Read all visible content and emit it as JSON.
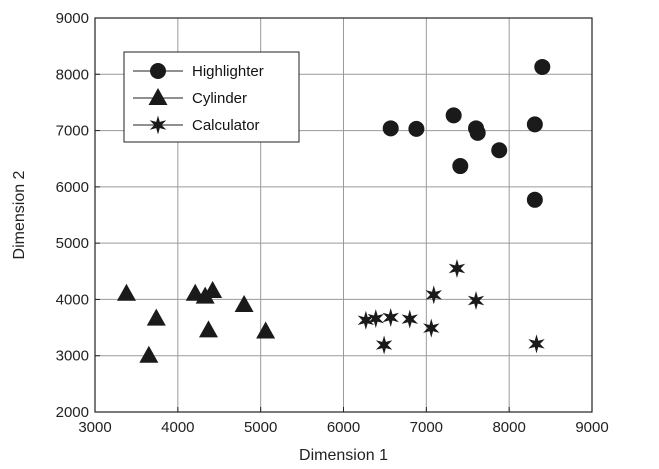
{
  "chart_data": {
    "type": "scatter",
    "title": "",
    "xlabel": "Dimension 1",
    "ylabel": "Dimension 2",
    "xlim": [
      3000,
      9000
    ],
    "ylim": [
      2000,
      9000
    ],
    "xticks": [
      3000,
      4000,
      5000,
      6000,
      7000,
      8000,
      9000
    ],
    "yticks": [
      2000,
      3000,
      4000,
      5000,
      6000,
      7000,
      8000,
      9000
    ],
    "grid": true,
    "legend_position": "top-left",
    "series": [
      {
        "name": "Highlighter",
        "marker": "circle",
        "points": [
          [
            6570,
            7040
          ],
          [
            6880,
            7030
          ],
          [
            7330,
            7270
          ],
          [
            7600,
            7040
          ],
          [
            7620,
            6960
          ],
          [
            7880,
            6650
          ],
          [
            8310,
            7110
          ],
          [
            8400,
            8130
          ],
          [
            7410,
            6370
          ],
          [
            8310,
            5770
          ]
        ]
      },
      {
        "name": "Cylinder",
        "marker": "triangle",
        "points": [
          [
            3380,
            4100
          ],
          [
            3740,
            3660
          ],
          [
            3650,
            3000
          ],
          [
            4210,
            4100
          ],
          [
            4330,
            4050
          ],
          [
            4420,
            4150
          ],
          [
            4370,
            3450
          ],
          [
            4800,
            3900
          ],
          [
            5060,
            3430
          ]
        ]
      },
      {
        "name": "Calculator",
        "marker": "star",
        "points": [
          [
            6270,
            3630
          ],
          [
            6390,
            3660
          ],
          [
            6570,
            3680
          ],
          [
            6800,
            3650
          ],
          [
            7090,
            4080
          ],
          [
            7060,
            3490
          ],
          [
            7370,
            4550
          ],
          [
            7600,
            3980
          ],
          [
            6490,
            3190
          ],
          [
            8330,
            3210
          ]
        ]
      }
    ]
  }
}
